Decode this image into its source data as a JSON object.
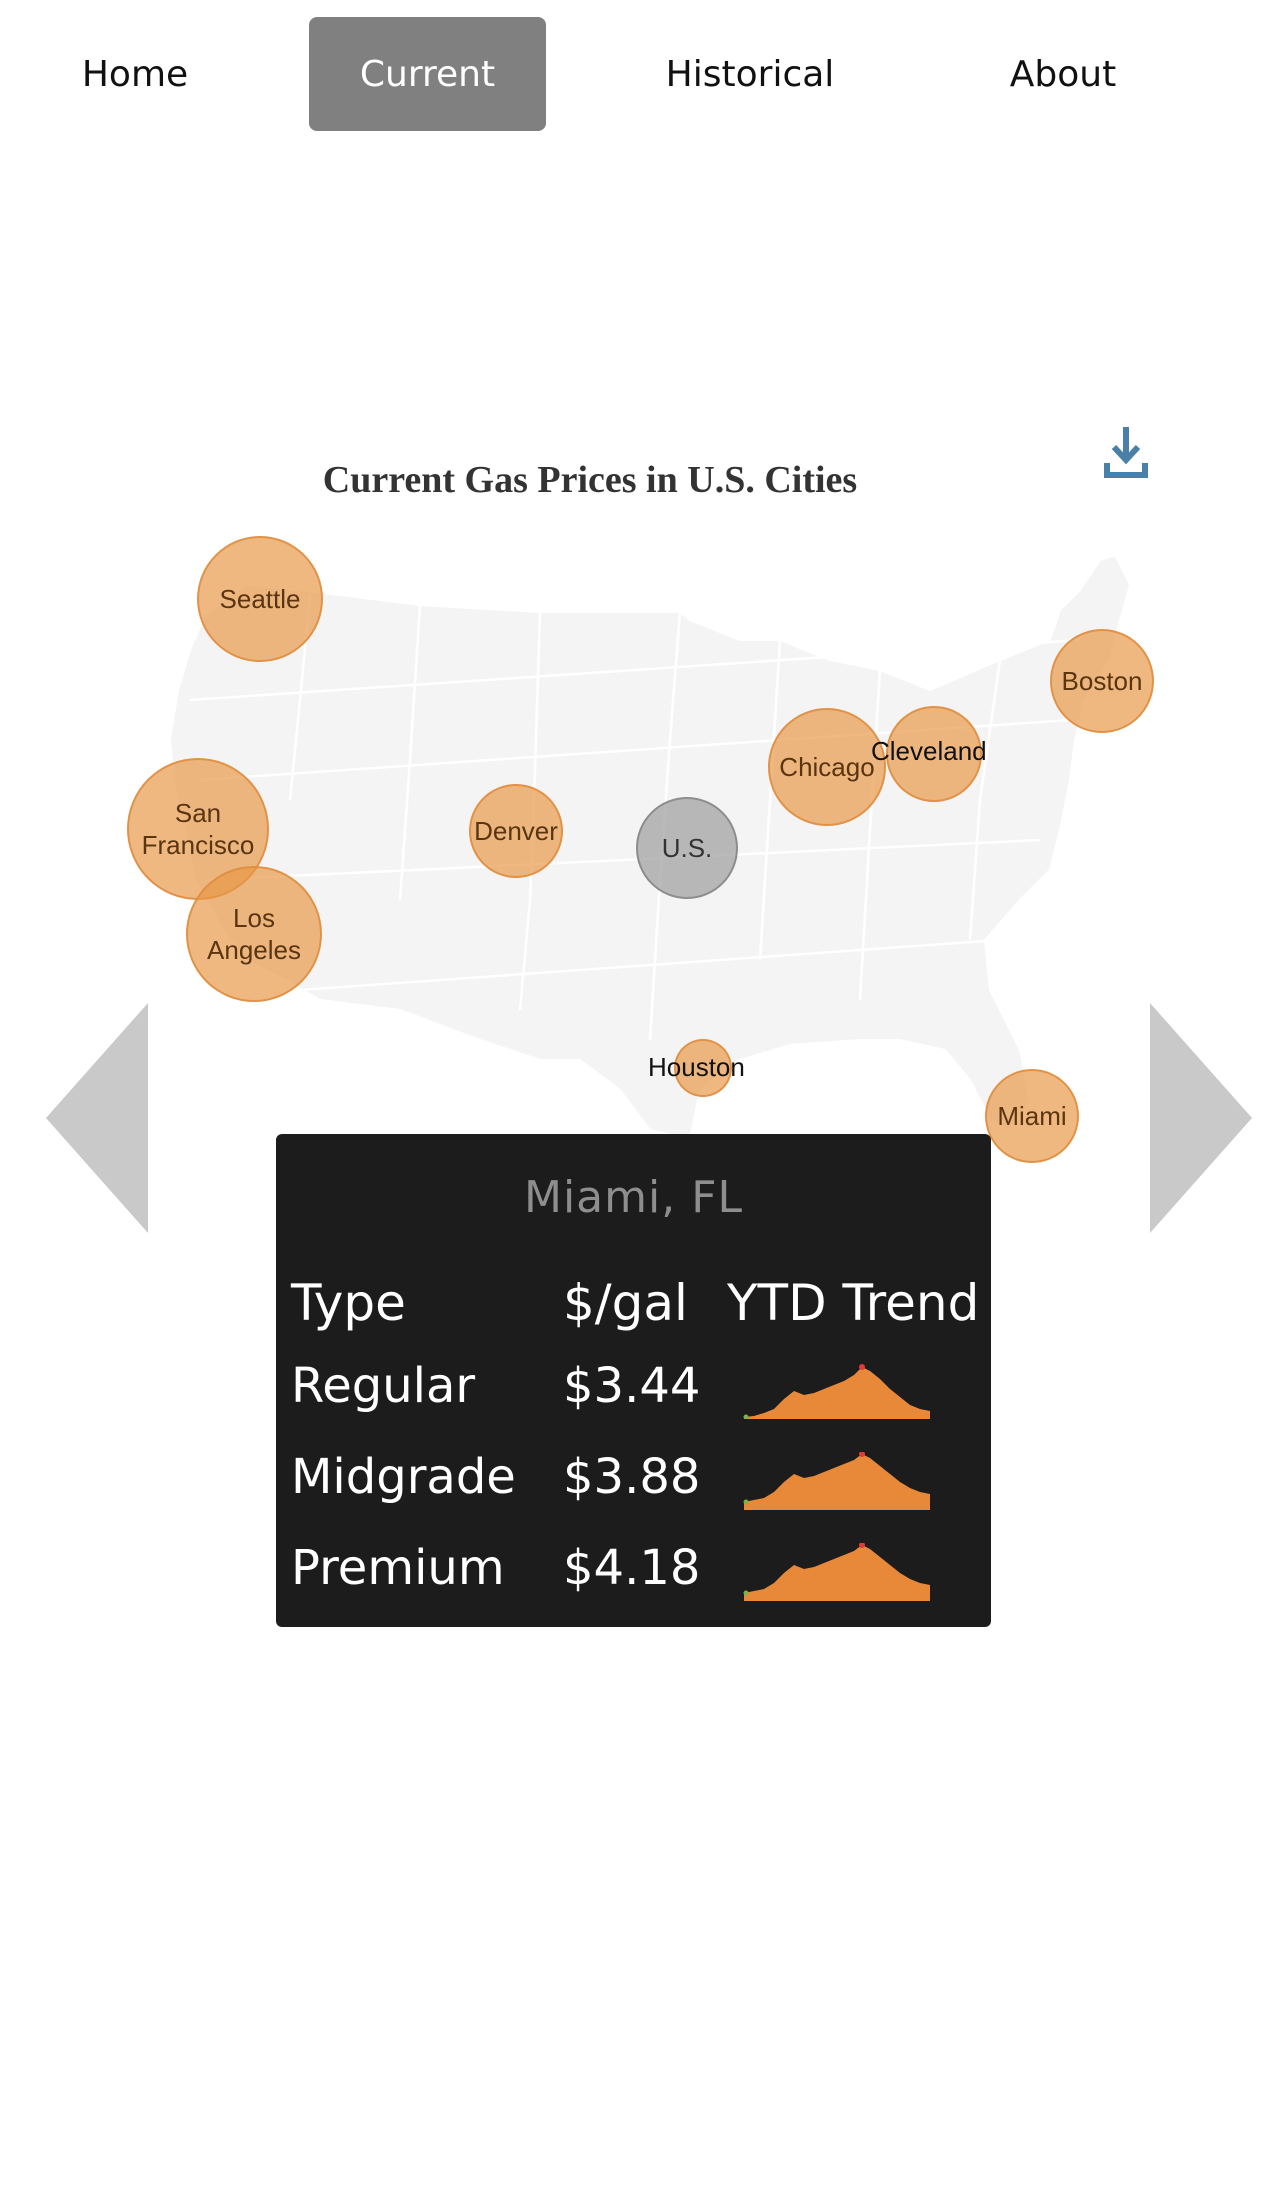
{
  "nav": {
    "items": [
      {
        "label": "Home",
        "active": false
      },
      {
        "label": "Current",
        "active": true
      },
      {
        "label": "Historical",
        "active": false
      },
      {
        "label": "About",
        "active": false
      }
    ]
  },
  "map": {
    "title": "Current Gas Prices in U.S. Cities",
    "download_icon": "download-icon",
    "colors": {
      "bubble": "#e89646",
      "us_bubble": "#a0a0a0",
      "land": "#f4f4f4",
      "border": "#ffffff"
    },
    "cities": [
      {
        "name": "Seattle",
        "label": "Seattle"
      },
      {
        "name": "San Francisco",
        "label": "San\nFrancisco"
      },
      {
        "name": "Los Angeles",
        "label": "Los\nAngeles"
      },
      {
        "name": "Denver",
        "label": "Denver"
      },
      {
        "name": "U.S.",
        "label": "U.S."
      },
      {
        "name": "Chicago",
        "label": "Chicago"
      },
      {
        "name": "Cleveland",
        "label": "Cleveland"
      },
      {
        "name": "Boston",
        "label": "Boston"
      },
      {
        "name": "Houston",
        "label": "Houston"
      },
      {
        "name": "Miami",
        "label": "Miami"
      }
    ]
  },
  "navigation_arrows": {
    "left_icon": "triangle-left-icon",
    "right_icon": "triangle-right-icon"
  },
  "tooltip": {
    "title": "Miami, FL",
    "headers": {
      "type": "Type",
      "price": "$/gal",
      "trend": "YTD Trend"
    },
    "rows": [
      {
        "type": "Regular",
        "price": "$3.44"
      },
      {
        "type": "Midgrade",
        "price": "$3.88"
      },
      {
        "type": "Premium",
        "price": "$4.18"
      }
    ],
    "sparkline_color": "#e8893a",
    "sparkline_max_marker_color": "#e53935",
    "sparkline_min_marker_color": "#7cb342"
  }
}
